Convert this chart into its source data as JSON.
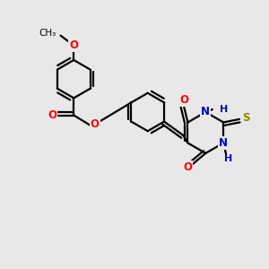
{
  "bg_color": "#e8e8e8",
  "bond_color": "#000000",
  "bond_width": 1.6,
  "dbo": 0.12,
  "figsize": [
    3.0,
    3.0
  ],
  "dpi": 100,
  "colors": {
    "O": "#ff0000",
    "N": "#0000bb",
    "S": "#888800",
    "C": "#000000",
    "H": "#0000bb"
  }
}
